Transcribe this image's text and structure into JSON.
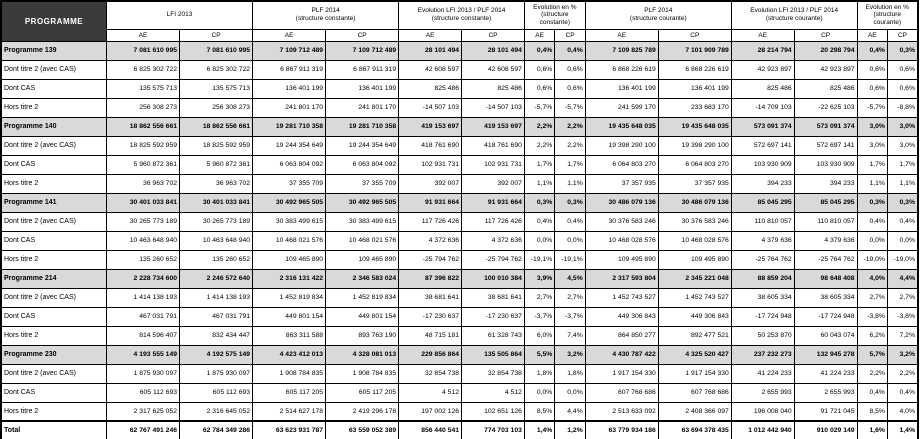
{
  "table": {
    "corner_label": "PROGRAMME",
    "col_groups": [
      {
        "label": "LFI 2013",
        "sub": ""
      },
      {
        "label": "PLF 2014",
        "sub": "(structure constante)"
      },
      {
        "label": "Evolution LFI 2013 / PLF 2014",
        "sub": "(structure constante)"
      },
      {
        "label": "Evolution en %",
        "sub": "(structure constante)"
      },
      {
        "label": "PLF 2014",
        "sub": "(structure courante)"
      },
      {
        "label": "Evolution LFI 2013 / PLF 2014",
        "sub": "(structure courante)"
      },
      {
        "label": "Evolution en %",
        "sub": "(structure courante)"
      }
    ],
    "unit_headers": [
      "AE",
      "CP"
    ],
    "rows": [
      {
        "label": "Programme 139",
        "type": "programme",
        "values": [
          "7 081 610 995",
          "7 081 610 995",
          "7 109 712 489",
          "7 109 712 489",
          "28 101 494",
          "28 101 494",
          "0,4%",
          "0,4%",
          "7 109 825 789",
          "7 101 909 789",
          "28 214 794",
          "20 298 794",
          "0,4%",
          "0,3%"
        ]
      },
      {
        "label": "Dont titre 2 (avec CAS)",
        "type": "detail",
        "values": [
          "6 825 302 722",
          "6 825 302 722",
          "6 867 911 319",
          "6 867 911 319",
          "42 608 597",
          "42 608 597",
          "0,6%",
          "0,6%",
          "6 868 226 619",
          "6 868 226 619",
          "42 923 897",
          "42 923 897",
          "0,6%",
          "0,6%"
        ]
      },
      {
        "label": "Dont CAS",
        "type": "detail",
        "values": [
          "135 575 713",
          "135 575 713",
          "136 401 199",
          "136 401 199",
          "825 486",
          "825 486",
          "0,6%",
          "0,6%",
          "136 401 199",
          "136 401 199",
          "825 486",
          "825 486",
          "0,6%",
          "0,6%"
        ]
      },
      {
        "label": "Hors titre 2",
        "type": "detail",
        "values": [
          "256 308 273",
          "256 308 273",
          "241 801 170",
          "241 801 170",
          "-14 507 103",
          "-14 507 103",
          "-5,7%",
          "-5,7%",
          "241 599 170",
          "233 683 170",
          "-14 709 103",
          "-22 625 103",
          "-5,7%",
          "-8,8%"
        ]
      },
      {
        "label": "Programme 140",
        "type": "programme",
        "values": [
          "18 862 556 661",
          "18 862 556 661",
          "19 281 710 358",
          "19 281 710 358",
          "419 153 697",
          "419 153 697",
          "2,2%",
          "2,2%",
          "19 435 648 035",
          "19 435 648 035",
          "573 091 374",
          "573 091 374",
          "3,0%",
          "3,0%"
        ]
      },
      {
        "label": "Dont titre 2 (avec CAS)",
        "type": "detail",
        "values": [
          "18 825 592 959",
          "18 825 592 959",
          "19 244 354 649",
          "19 244 354 649",
          "418 761 690",
          "418 761 690",
          "2,2%",
          "2,2%",
          "19 398 290 100",
          "19 398 290 100",
          "572 697 141",
          "572 697 141",
          "3,0%",
          "3,0%"
        ]
      },
      {
        "label": "Dont CAS",
        "type": "detail",
        "values": [
          "5 960 872 361",
          "5 960 872 361",
          "6 063 804 092",
          "6 063 804 092",
          "102 931 731",
          "102 931 731",
          "1,7%",
          "1,7%",
          "6 064 803 270",
          "6 064 803 270",
          "103 930 909",
          "103 930 909",
          "1,7%",
          "1,7%"
        ]
      },
      {
        "label": "Hors titre 2",
        "type": "detail",
        "values": [
          "36 963 702",
          "36 963 702",
          "37 355 709",
          "37 355 709",
          "392 007",
          "392 007",
          "1,1%",
          "1,1%",
          "37 357 935",
          "37 357 935",
          "394 233",
          "394 233",
          "1,1%",
          "1,1%"
        ]
      },
      {
        "label": "Programme 141",
        "type": "programme",
        "values": [
          "30 401 033 841",
          "30 401 033 841",
          "30 492 965 505",
          "30 492 965 505",
          "91 931 664",
          "91 931 664",
          "0,3%",
          "0,3%",
          "30 486 079 136",
          "30 486 079 136",
          "85 045 295",
          "85 045 295",
          "0,3%",
          "0,3%"
        ]
      },
      {
        "label": "Dont titre 2 (avec CAS)",
        "type": "detail",
        "values": [
          "30 265 773 189",
          "30 265 773 189",
          "30 383 499 615",
          "30 383 499 615",
          "117 726 426",
          "117 726 426",
          "0,4%",
          "0,4%",
          "30 376 583 246",
          "30 376 583 246",
          "110 810 057",
          "110 810 057",
          "0,4%",
          "0,4%"
        ]
      },
      {
        "label": "Dont CAS",
        "type": "detail",
        "values": [
          "10 463 648 940",
          "10 463 648 940",
          "10 468 021 576",
          "10 468 021 576",
          "4 372 636",
          "4 372 636",
          "0,0%",
          "0,0%",
          "10 468 028 576",
          "10 468 028 576",
          "4 379 636",
          "4 379 636",
          "0,0%",
          "0,0%"
        ]
      },
      {
        "label": "Hors titre 2",
        "type": "detail",
        "values": [
          "135 260 652",
          "135 260 652",
          "109 465 890",
          "109 465 890",
          "-25 794 762",
          "-25 794 762",
          "-19,1%",
          "-19,1%",
          "109 495 890",
          "109 495 890",
          "-25 764 762",
          "-25 764 762",
          "-19,0%",
          "-19,0%"
        ]
      },
      {
        "label": "Programme 214",
        "type": "programme",
        "values": [
          "2 228 734 600",
          "2 246 572 640",
          "2 316 131 422",
          "2 346 583 024",
          "87 396 822",
          "100 010 384",
          "3,9%",
          "4,5%",
          "2 317 593 804",
          "2 345 221 048",
          "88 859 204",
          "98 648 408",
          "4,0%",
          "4,4%"
        ]
      },
      {
        "label": "Dont titre 2 (avec CAS)",
        "type": "detail",
        "values": [
          "1 414 138 193",
          "1 414 138 193",
          "1 452 819 834",
          "1 452 819 834",
          "38 681 641",
          "38 681 641",
          "2,7%",
          "2,7%",
          "1 452 743 527",
          "1 452 743 527",
          "38 605 334",
          "38 605 334",
          "2,7%",
          "2,7%"
        ]
      },
      {
        "label": "Dont CAS",
        "type": "detail",
        "values": [
          "467 031 791",
          "467 031 791",
          "449 801 154",
          "449 801 154",
          "-17 230 637",
          "-17 230 637",
          "-3,7%",
          "-3,7%",
          "449 306 843",
          "449 306 843",
          "-17 724 948",
          "-17 724 948",
          "-3,8%",
          "-3,8%"
        ]
      },
      {
        "label": "Hors titre 2",
        "type": "detail",
        "values": [
          "814 596 407",
          "832 434 447",
          "863 311 588",
          "893 763 190",
          "48 715 181",
          "61 328 743",
          "6,0%",
          "7,4%",
          "864 850 277",
          "892 477 521",
          "50 253 870",
          "60 043 074",
          "6,2%",
          "7,2%"
        ]
      },
      {
        "label": "Programme 230",
        "type": "programme",
        "values": [
          "4 193 555 149",
          "4 192 575 149",
          "4 423 412 013",
          "4 328 081 013",
          "229 856 864",
          "135 505 864",
          "5,5%",
          "3,2%",
          "4 430 787 422",
          "4 325 520 427",
          "237 232 273",
          "132 945 278",
          "5,7%",
          "3,2%"
        ]
      },
      {
        "label": "Dont titre 2 (avec CAS)",
        "type": "detail",
        "values": [
          "1 875 930 097",
          "1 875 930 097",
          "1 908 784 835",
          "1 908 784 835",
          "32 854 738",
          "32 854 738",
          "1,8%",
          "1,8%",
          "1 917 154 330",
          "1 917 154 330",
          "41 224 233",
          "41 224 233",
          "2,2%",
          "2,2%"
        ]
      },
      {
        "label": "Dont CAS",
        "type": "detail",
        "values": [
          "605 112 693",
          "605 112 693",
          "605 117 205",
          "605 117 205",
          "4 512",
          "4 512",
          "0,0%",
          "0,0%",
          "607 768 686",
          "607 768 686",
          "2 655 993",
          "2 655 993",
          "0,4%",
          "0,4%"
        ]
      },
      {
        "label": "Hors titre 2",
        "type": "detail",
        "values": [
          "2 317 625 052",
          "2 316 645 052",
          "2 514 627 178",
          "2 419 296 178",
          "197 002 126",
          "102 651 126",
          "8,5%",
          "4,4%",
          "2 513 633 092",
          "2 408 366 097",
          "196 008 040",
          "91 721 045",
          "8,5%",
          "4,0%"
        ]
      },
      {
        "label": "Total",
        "type": "total",
        "values": [
          "62 767 491 246",
          "62 784 349 286",
          "63 623 931 787",
          "63 559 052 389",
          "856 440 541",
          "774 703 103",
          "1,4%",
          "1,2%",
          "63 779 934 186",
          "63 694 378 435",
          "1 012 442 940",
          "910 029 149",
          "1,6%",
          "1,4%"
        ]
      }
    ]
  },
  "colors": {
    "header_bg": "#3b3b3b",
    "header_text": "#ffffff",
    "programme_row_bg": "#d9d9d9",
    "border": "#000000"
  }
}
